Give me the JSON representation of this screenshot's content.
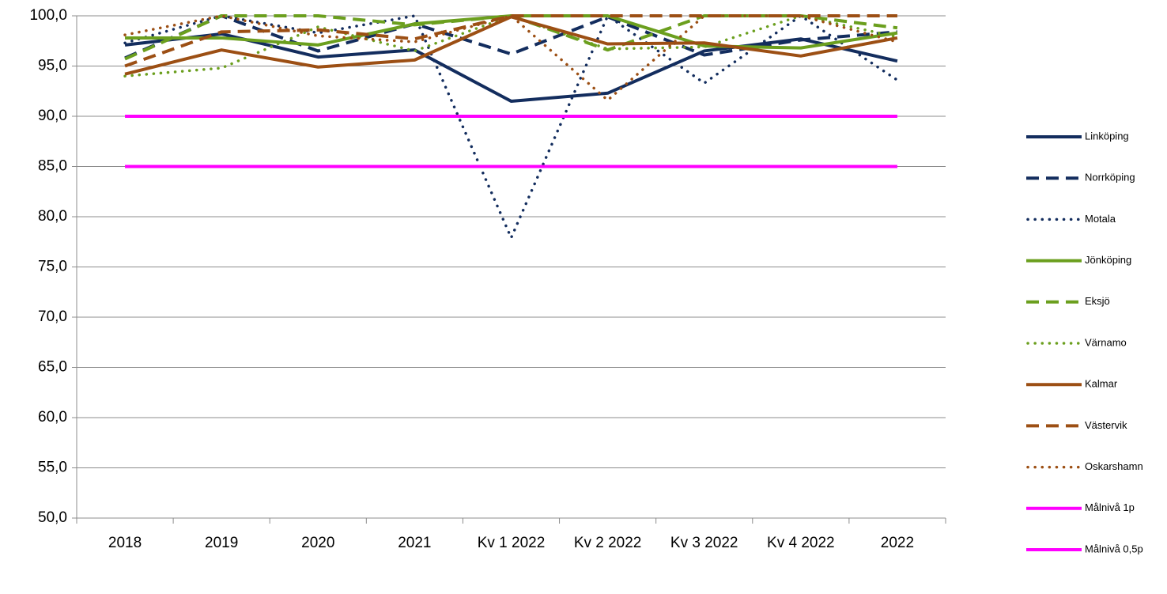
{
  "chart_data": {
    "type": "line",
    "categories": [
      "2018",
      "2019",
      "2020",
      "2021",
      "Kv 1 2022",
      "Kv 2 2022",
      "Kv 3 2022",
      "Kv 4 2022",
      "2022"
    ],
    "ylim": [
      50,
      100
    ],
    "yticks": [
      {
        "value": 50,
        "label": "50,0"
      },
      {
        "value": 55,
        "label": "55,0"
      },
      {
        "value": 60,
        "label": "60,0"
      },
      {
        "value": 65,
        "label": "65,0"
      },
      {
        "value": 70,
        "label": "70,0"
      },
      {
        "value": 75,
        "label": "75,0"
      },
      {
        "value": 80,
        "label": "80,0"
      },
      {
        "value": 85,
        "label": "85,0"
      },
      {
        "value": 90,
        "label": "90,0"
      },
      {
        "value": 95,
        "label": "95,0"
      },
      {
        "value": 100,
        "label": "100,0"
      }
    ],
    "grid": true,
    "legend": "right",
    "series": [
      {
        "name": "Linköping",
        "color": "#132d5e",
        "style": "solid",
        "values": [
          97.1,
          98.2,
          95.9,
          96.6,
          91.5,
          92.3,
          96.5,
          97.7,
          95.5
        ]
      },
      {
        "name": "Norrköping",
        "color": "#132d5e",
        "style": "dash",
        "values": [
          95.8,
          100,
          96.5,
          99.2,
          96.2,
          99.9,
          96.1,
          97.6,
          98.4
        ]
      },
      {
        "name": "Motala",
        "color": "#132d5e",
        "style": "dot",
        "values": [
          97.3,
          100,
          98.3,
          100,
          77.9,
          100,
          93.3,
          100,
          93.6
        ]
      },
      {
        "name": "Jönköping",
        "color": "#6b9f1e",
        "style": "solid",
        "values": [
          97.8,
          97.8,
          97.1,
          99.2,
          100,
          100,
          97.0,
          96.8,
          98.3
        ]
      },
      {
        "name": "Eksjö",
        "color": "#6b9f1e",
        "style": "dash",
        "values": [
          95.7,
          100,
          100,
          99.1,
          100,
          96.6,
          100,
          100,
          98.8
        ]
      },
      {
        "name": "Värnamo",
        "color": "#6b9f1e",
        "style": "dot",
        "values": [
          94.0,
          94.8,
          98.9,
          96.5,
          100,
          96.7,
          96.9,
          100,
          97.9
        ]
      },
      {
        "name": "Kalmar",
        "color": "#9c4f14",
        "style": "solid",
        "values": [
          94.2,
          96.6,
          94.9,
          95.6,
          99.9,
          97.2,
          97.3,
          96.0,
          97.8
        ]
      },
      {
        "name": "Västervik",
        "color": "#9c4f14",
        "style": "dash",
        "values": [
          95.0,
          98.4,
          98.6,
          97.7,
          100,
          100,
          100,
          100,
          100
        ]
      },
      {
        "name": "Oskarshamn",
        "color": "#9c4f14",
        "style": "dot",
        "values": [
          98.1,
          100,
          98.0,
          97.4,
          100,
          91.6,
          100,
          100,
          97.4
        ]
      },
      {
        "name": "Målnivå 1p",
        "color": "#ff00ff",
        "style": "solid",
        "values": [
          90,
          90,
          90,
          90,
          90,
          90,
          90,
          90,
          90
        ]
      },
      {
        "name": "Målnivå 0,5p",
        "color": "#ff00ff",
        "style": "solid",
        "values": [
          85,
          85,
          85,
          85,
          85,
          85,
          85,
          85,
          85
        ]
      }
    ]
  }
}
